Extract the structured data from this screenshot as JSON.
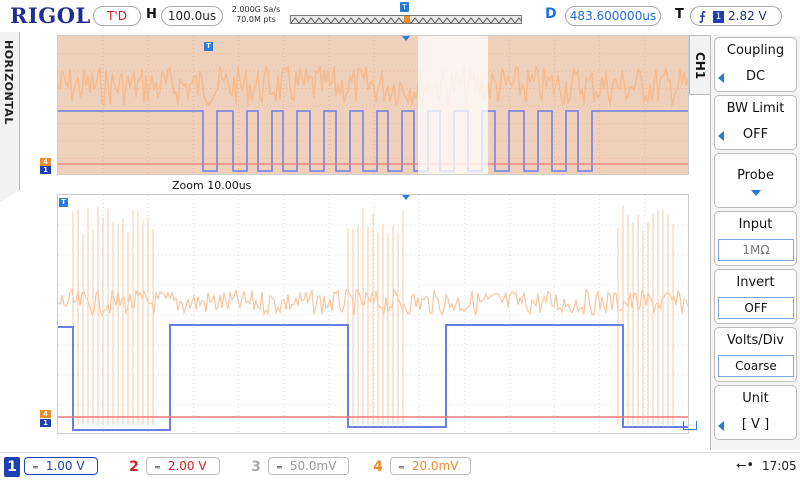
{
  "topbar": {
    "brand": "RIGOL",
    "run_state": "T'D",
    "horizontal_label": "H",
    "timebase": "100.0us",
    "sample_rate": "2.000G Sa/s",
    "memory_depth": "70.0M pts",
    "delay_label": "D",
    "delay_value": "483.600000us",
    "trigger_label": "T",
    "trigger_edge_icon": "rising-edge-icon",
    "trigger_channel": "1",
    "trigger_level": "2.82 V"
  },
  "left_tab": {
    "label": "HORIZONTAL"
  },
  "main_view": {
    "zoom_label": "Zoom  10.00us",
    "marker_ch4": "4",
    "marker_ch1": "1",
    "trigger_marker": "T"
  },
  "right_menu": {
    "tab_label": "CH1",
    "items": [
      {
        "title": "Coupling",
        "value": "DC"
      },
      {
        "title": "BW Limit",
        "value": "OFF"
      },
      {
        "title": "Probe",
        "value": ""
      },
      {
        "title": "Input",
        "value": "1MΩ"
      },
      {
        "title": "Invert",
        "value": "OFF"
      },
      {
        "title": "Volts/Div",
        "value": "Coarse"
      },
      {
        "title": "Unit",
        "value": "[  V  ]"
      }
    ]
  },
  "bottombar": {
    "channels": [
      {
        "num": "1",
        "scale": "1.00 V",
        "color": "#1f3fb5"
      },
      {
        "num": "2",
        "scale": "2.00 V",
        "color": "#d02020"
      },
      {
        "num": "3",
        "scale": "50.0mV",
        "color": "#999999"
      },
      {
        "num": "4",
        "scale": "20.0mV",
        "color": "#f08a2a"
      }
    ],
    "usb_icon": "usb-icon",
    "time": "17:05"
  },
  "colors": {
    "ch1": "#6b7fe8",
    "ch2": "#f07878",
    "ch4": "#f5b889",
    "accent": "#2a7ad8"
  }
}
